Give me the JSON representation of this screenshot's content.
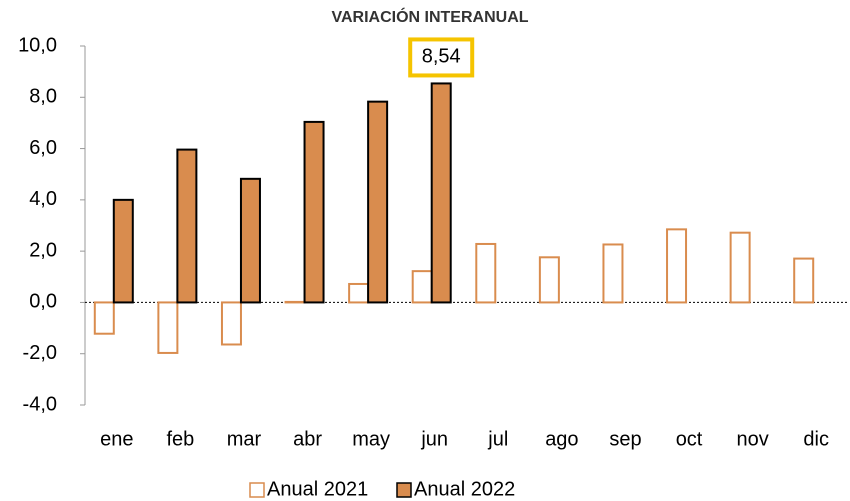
{
  "chart_data": {
    "type": "bar",
    "title": "VARIACIÓN INTERANUAL",
    "categories": [
      "ene",
      "feb",
      "mar",
      "abr",
      "may",
      "jun",
      "jul",
      "ago",
      "sep",
      "oct",
      "nov",
      "dic"
    ],
    "series": [
      {
        "name": "Anual 2021",
        "color": "#d98c4e",
        "fill": "hollow",
        "values": [
          -1.22,
          -1.97,
          -1.64,
          0.02,
          0.72,
          1.22,
          2.28,
          1.76,
          2.26,
          2.85,
          2.72,
          1.71
        ]
      },
      {
        "name": "Anual 2022",
        "color": "#d98c4e",
        "fill": "solid",
        "values": [
          4.0,
          5.96,
          4.82,
          7.04,
          7.83,
          8.54,
          null,
          null,
          null,
          null,
          null,
          null
        ],
        "value_labels": [
          null,
          null,
          null,
          null,
          null,
          "8,54",
          null,
          null,
          null,
          null,
          null,
          null
        ]
      }
    ],
    "ylim": [
      -4,
      10
    ],
    "yticks": [
      {
        "value": -4,
        "label": "-4,0"
      },
      {
        "value": -2,
        "label": "-2,0"
      },
      {
        "value": 0,
        "label": "0,0"
      },
      {
        "value": 2,
        "label": "2,0"
      },
      {
        "value": 4,
        "label": "4,0"
      },
      {
        "value": 6,
        "label": "6,0"
      },
      {
        "value": 8,
        "label": "8,0"
      },
      {
        "value": 10,
        "label": "10,0"
      }
    ],
    "grid": false,
    "legend": "bottom"
  }
}
